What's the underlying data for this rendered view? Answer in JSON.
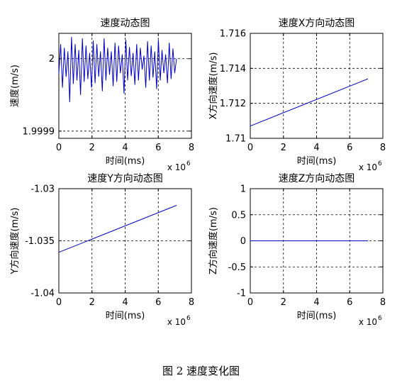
{
  "caption": "图 2  速度变化图",
  "chart_data": [
    {
      "type": "line",
      "title": "速度动态图",
      "xlabel": "时间(ms)",
      "ylabel": "速度(m/s)",
      "x_multiplier": "x 10",
      "x_multiplier_exp": "6",
      "xlim": [
        0,
        8
      ],
      "ylim": [
        1.99989,
        2.000035
      ],
      "xticks": [
        0,
        2,
        4,
        6,
        8
      ],
      "xtick_labels": [
        "0",
        "2",
        "4",
        "6",
        "8"
      ],
      "yticks": [
        1.9999,
        2.0
      ],
      "ytick_labels": [
        "1.9999",
        "2"
      ],
      "grid": true,
      "line_color": "#0000cc",
      "series": [
        {
          "x_range": [
            0,
            7.1
          ],
          "values": [
            1.99998,
            2.00002,
            1.99996,
            2.000015,
            1.999975,
            2.00001,
            1.99994,
            2.00003,
            1.999965,
            2.00002,
            1.99997,
            2.000012,
            1.99995,
            2.000028,
            1.999968,
            2.000018,
            1.999972,
            2.000008,
            1.99996,
            2.000025,
            1.999966,
            2.00002,
            1.999975,
            2.00001,
            1.999955,
            2.000028,
            1.99997,
            2.000015,
            1.999978,
            2.00001,
            1.999962,
            2.000022,
            1.999968,
            2.000018,
            1.99998,
            2.000006,
            1.999952,
            2.000026,
            1.99997,
            2.000016,
            1.999976,
            2.000008,
            1.999964,
            2.00002,
            1.99997,
            2.000015,
            1.999985,
            2.000004,
            1.99996,
            2.000024,
            1.99997,
            2.000018,
            1.999974,
            2.00001,
            1.999958,
            2.000026,
            1.99997,
            2.000012,
            1.99998,
            2.000006,
            1.999966,
            2.000022,
            1.999972,
            2.000014,
            1.99998,
            2.0
          ]
        }
      ]
    },
    {
      "type": "line",
      "title": "速度X方向动态图",
      "xlabel": "时间(ms)",
      "ylabel": "X方向速度(m/s)",
      "x_multiplier": "x 10",
      "x_multiplier_exp": "6",
      "xlim": [
        0,
        8
      ],
      "ylim": [
        1.71,
        1.716
      ],
      "xticks": [
        0,
        2,
        4,
        6,
        8
      ],
      "xtick_labels": [
        "0",
        "2",
        "4",
        "6",
        "8"
      ],
      "yticks": [
        1.71,
        1.712,
        1.714,
        1.716
      ],
      "ytick_labels": [
        "1.71",
        "1.712",
        "1.714",
        "1.716"
      ],
      "grid": true,
      "line_color": "#0000cc",
      "series": [
        {
          "x": [
            0,
            7.1
          ],
          "values": [
            1.7107,
            1.7134
          ]
        }
      ]
    },
    {
      "type": "line",
      "title": "速度Y方向动态图",
      "xlabel": "时间(ms)",
      "ylabel": "Y方向速度(m/s)",
      "x_multiplier": "x 10",
      "x_multiplier_exp": "6",
      "xlim": [
        0,
        8
      ],
      "ylim": [
        -1.04,
        -1.03
      ],
      "xticks": [
        0,
        2,
        4,
        6,
        8
      ],
      "xtick_labels": [
        "0",
        "2",
        "4",
        "6",
        "8"
      ],
      "yticks": [
        -1.04,
        -1.035,
        -1.03
      ],
      "ytick_labels": [
        "-1.04",
        "-1.035",
        "-1.03"
      ],
      "grid": true,
      "line_color": "#0000cc",
      "series": [
        {
          "x": [
            0,
            7.1
          ],
          "values": [
            -1.0361,
            -1.0316
          ]
        }
      ]
    },
    {
      "type": "line",
      "title": "速度Z方向动态图",
      "xlabel": "时间(ms)",
      "ylabel": "Z方向速度(m/s)",
      "x_multiplier": "x 10",
      "x_multiplier_exp": "6",
      "xlim": [
        0,
        8
      ],
      "ylim": [
        -1,
        1
      ],
      "xticks": [
        0,
        2,
        4,
        6,
        8
      ],
      "xtick_labels": [
        "0",
        "2",
        "4",
        "6",
        "8"
      ],
      "yticks": [
        -1,
        -0.5,
        0,
        0.5,
        1
      ],
      "ytick_labels": [
        "-1",
        "-0.5",
        "0",
        "0.5",
        "1"
      ],
      "grid": true,
      "line_color": "#0000cc",
      "series": [
        {
          "x": [
            0,
            7.1
          ],
          "values": [
            0,
            0
          ]
        }
      ]
    }
  ]
}
